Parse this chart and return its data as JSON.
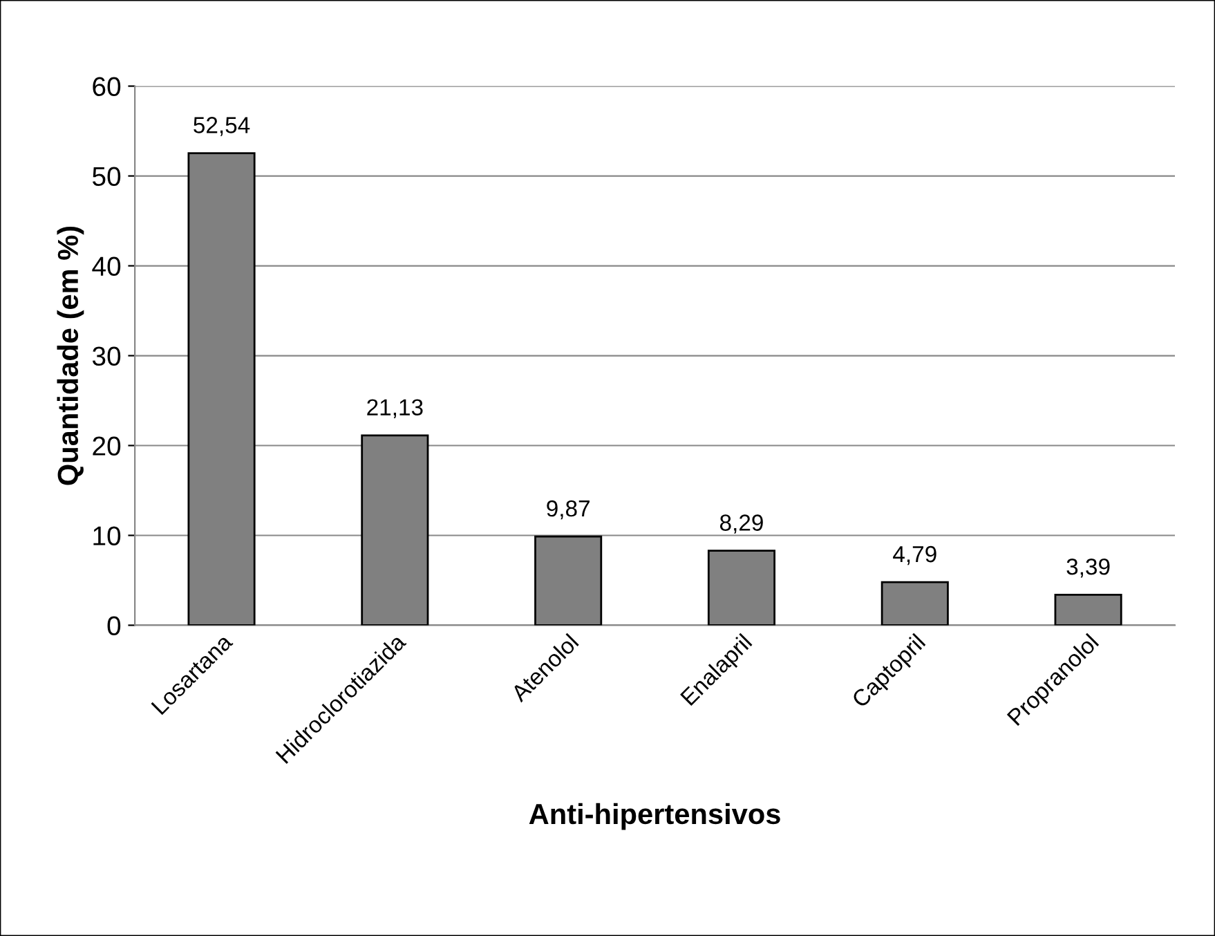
{
  "chart_data": {
    "type": "bar",
    "xlabel": "Anti-hipertensivos",
    "ylabel": "Quantidade (em %)",
    "categories": [
      "Losartana",
      "Hidroclorotiazida",
      "Atenolol",
      "Enalapril",
      "Captopril",
      "Propranolol"
    ],
    "values": [
      52.54,
      21.13,
      9.87,
      8.29,
      4.79,
      3.39
    ],
    "value_labels": [
      "52,54",
      "21,13",
      "9,87",
      "8,29",
      "4,79",
      "3,39"
    ],
    "color": "#808080",
    "ylim": [
      0,
      60
    ],
    "yticks": [
      0,
      10,
      20,
      30,
      40,
      50,
      60
    ],
    "grid": "y",
    "legend": false
  }
}
